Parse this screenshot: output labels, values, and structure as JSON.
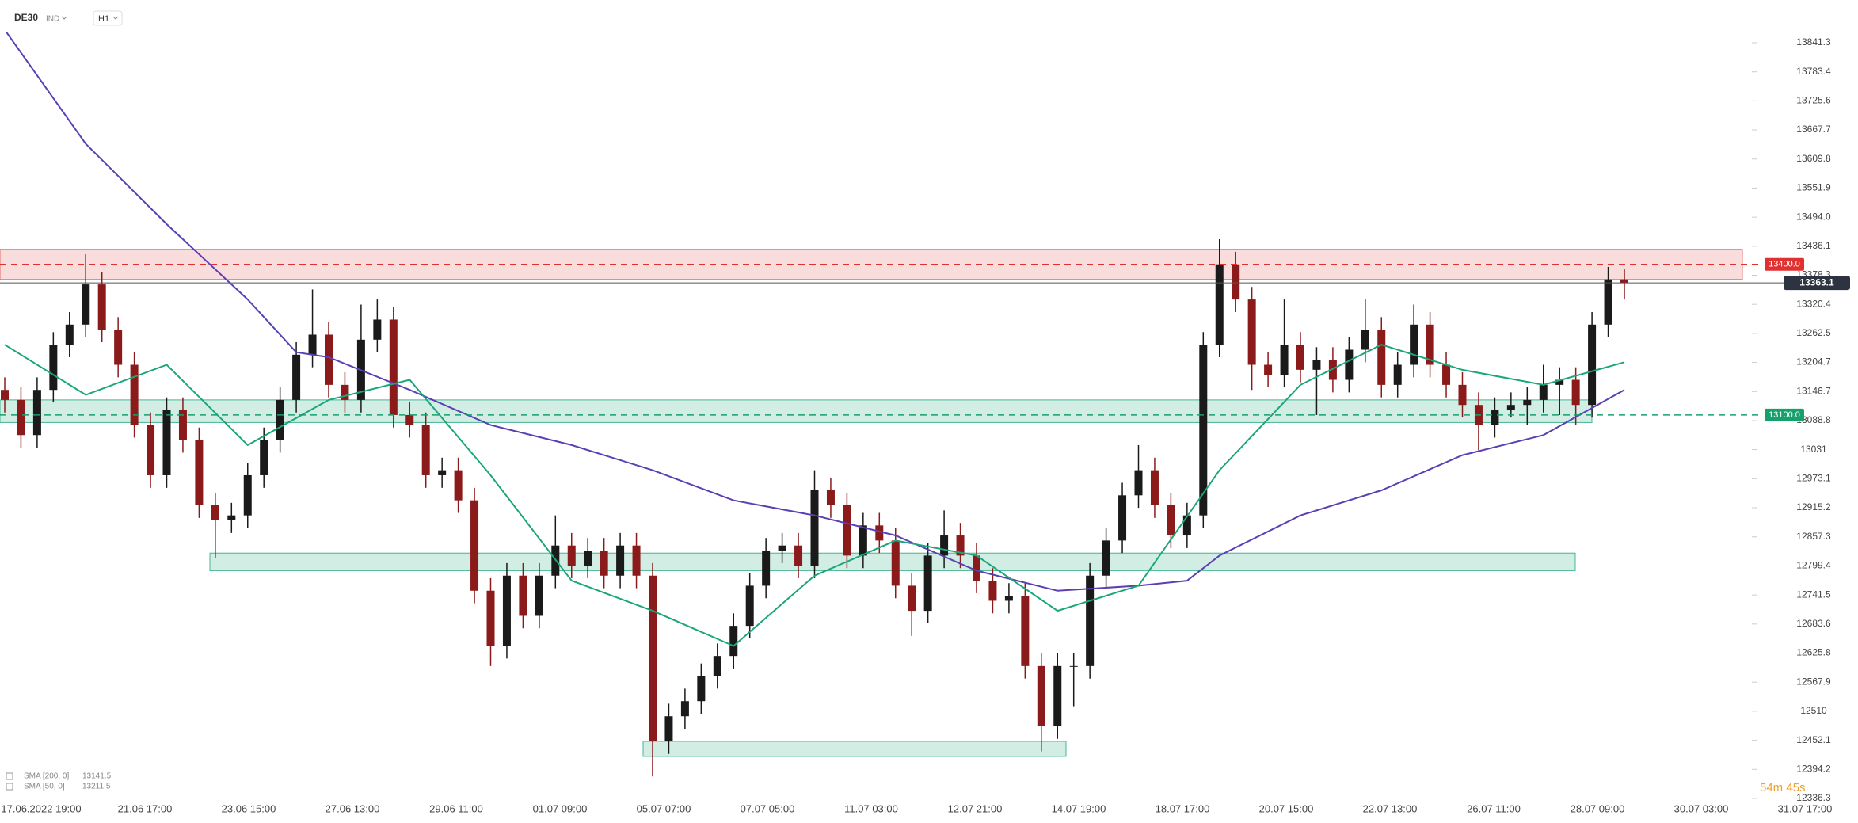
{
  "header": {
    "symbol": "DE30",
    "market": "IND",
    "interval": "H1"
  },
  "countdown": "54m 45s",
  "chart_data": {
    "type": "candlestick",
    "up_color": "#1a1a1a",
    "down_color": "#8b1a1a",
    "ylim": [
      12336.3,
      13841.3
    ],
    "yticks": [
      13841.3,
      13783.4,
      13725.6,
      13667.7,
      13609.8,
      13551.9,
      {
        "value": 13494.0,
        "label": "13494.0"
      },
      13436.1,
      13378.3,
      13320.4,
      13262.5,
      13204.7,
      13146.7,
      13088.8,
      13031.0,
      12973.1,
      12915.2,
      12857.3,
      12799.4,
      12741.5,
      12683.6,
      12625.8,
      12567.9,
      12510.0,
      12452.1,
      12394.2,
      12336.3
    ],
    "x_labels": [
      "17.06.2022 19:00",
      "21.06 17:00",
      "23.06 15:00",
      "27.06 13:00",
      "29.06 11:00",
      "01.07 09:00",
      "05.07 07:00",
      "07.07 05:00",
      "11.07 03:00",
      "12.07 21:00",
      "14.07 19:00",
      "18.07 17:00",
      "20.07 15:00",
      "22.07 13:00",
      "26.07 11:00",
      "28.07 09:00",
      "30.07 03:00",
      "31.07 17:00"
    ],
    "ohlc": [
      [
        13150,
        13175,
        13105,
        13130
      ],
      [
        13130,
        13155,
        13035,
        13060
      ],
      [
        13060,
        13175,
        13035,
        13150
      ],
      [
        13150,
        13265,
        13125,
        13240
      ],
      [
        13240,
        13305,
        13215,
        13280
      ],
      [
        13280,
        13420,
        13255,
        13360
      ],
      [
        13360,
        13385,
        13245,
        13270
      ],
      [
        13270,
        13295,
        13175,
        13200
      ],
      [
        13200,
        13225,
        13055,
        13080
      ],
      [
        13080,
        13105,
        12955,
        12980
      ],
      [
        12980,
        13135,
        12955,
        13110
      ],
      [
        13110,
        13135,
        13025,
        13050
      ],
      [
        13050,
        13075,
        12895,
        12920
      ],
      [
        12920,
        12945,
        12815,
        12890
      ],
      [
        12890,
        12925,
        12865,
        12900
      ],
      [
        12900,
        13005,
        12875,
        12980
      ],
      [
        12980,
        13075,
        12955,
        13050
      ],
      [
        13050,
        13155,
        13025,
        13130
      ],
      [
        13130,
        13245,
        13105,
        13220
      ],
      [
        13220,
        13350,
        13195,
        13260
      ],
      [
        13260,
        13285,
        13135,
        13160
      ],
      [
        13160,
        13185,
        13105,
        13130
      ],
      [
        13130,
        13320,
        13105,
        13250
      ],
      [
        13250,
        13330,
        13225,
        13290
      ],
      [
        13290,
        13315,
        13075,
        13100
      ],
      [
        13100,
        13125,
        13055,
        13080
      ],
      [
        13080,
        13105,
        12955,
        12980
      ],
      [
        12980,
        13015,
        12955,
        12990
      ],
      [
        12990,
        13015,
        12905,
        12930
      ],
      [
        12930,
        12955,
        12725,
        12750
      ],
      [
        12750,
        12775,
        12600,
        12640
      ],
      [
        12640,
        12805,
        12615,
        12780
      ],
      [
        12780,
        12805,
        12675,
        12700
      ],
      [
        12700,
        12805,
        12675,
        12780
      ],
      [
        12780,
        12900,
        12755,
        12840
      ],
      [
        12840,
        12865,
        12775,
        12800
      ],
      [
        12800,
        12855,
        12775,
        12830
      ],
      [
        12830,
        12855,
        12755,
        12780
      ],
      [
        12780,
        12865,
        12755,
        12840
      ],
      [
        12840,
        12865,
        12755,
        12780
      ],
      [
        12780,
        12805,
        12380,
        12450
      ],
      [
        12450,
        12525,
        12425,
        12500
      ],
      [
        12500,
        12555,
        12475,
        12530
      ],
      [
        12530,
        12605,
        12505,
        12580
      ],
      [
        12580,
        12645,
        12555,
        12620
      ],
      [
        12620,
        12705,
        12595,
        12680
      ],
      [
        12680,
        12785,
        12655,
        12760
      ],
      [
        12760,
        12855,
        12735,
        12830
      ],
      [
        12830,
        12865,
        12805,
        12840
      ],
      [
        12840,
        12865,
        12775,
        12800
      ],
      [
        12800,
        12990,
        12775,
        12950
      ],
      [
        12950,
        12975,
        12895,
        12920
      ],
      [
        12920,
        12945,
        12795,
        12820
      ],
      [
        12820,
        12905,
        12795,
        12880
      ],
      [
        12880,
        12905,
        12825,
        12850
      ],
      [
        12850,
        12875,
        12735,
        12760
      ],
      [
        12760,
        12785,
        12660,
        12710
      ],
      [
        12710,
        12845,
        12685,
        12820
      ],
      [
        12820,
        12910,
        12795,
        12860
      ],
      [
        12860,
        12885,
        12795,
        12820
      ],
      [
        12820,
        12845,
        12745,
        12770
      ],
      [
        12770,
        12795,
        12705,
        12730
      ],
      [
        12730,
        12765,
        12705,
        12740
      ],
      [
        12740,
        12765,
        12575,
        12600
      ],
      [
        12600,
        12625,
        12430,
        12480
      ],
      [
        12480,
        12625,
        12455,
        12600
      ],
      [
        12600,
        12625,
        12520,
        12600
      ],
      [
        12600,
        12805,
        12575,
        12780
      ],
      [
        12780,
        12875,
        12755,
        12850
      ],
      [
        12850,
        12965,
        12825,
        12940
      ],
      [
        12940,
        13040,
        12915,
        12990
      ],
      [
        12990,
        13015,
        12895,
        12920
      ],
      [
        12920,
        12945,
        12835,
        12860
      ],
      [
        12860,
        12925,
        12835,
        12900
      ],
      [
        12900,
        13265,
        12875,
        13240
      ],
      [
        13240,
        13450,
        13215,
        13400
      ],
      [
        13400,
        13425,
        13305,
        13330
      ],
      [
        13330,
        13355,
        13150,
        13200
      ],
      [
        13200,
        13225,
        13155,
        13180
      ],
      [
        13180,
        13330,
        13155,
        13240
      ],
      [
        13240,
        13265,
        13165,
        13190
      ],
      [
        13190,
        13235,
        13100,
        13210
      ],
      [
        13210,
        13235,
        13145,
        13170
      ],
      [
        13170,
        13255,
        13145,
        13230
      ],
      [
        13230,
        13330,
        13205,
        13270
      ],
      [
        13270,
        13295,
        13135,
        13160
      ],
      [
        13160,
        13225,
        13135,
        13200
      ],
      [
        13200,
        13320,
        13175,
        13280
      ],
      [
        13280,
        13305,
        13175,
        13200
      ],
      [
        13200,
        13225,
        13135,
        13160
      ],
      [
        13160,
        13185,
        13095,
        13120
      ],
      [
        13120,
        13145,
        13030,
        13080
      ],
      [
        13080,
        13135,
        13055,
        13110
      ],
      [
        13110,
        13145,
        13095,
        13120
      ],
      [
        13120,
        13155,
        13080,
        13130
      ],
      [
        13130,
        13200,
        13105,
        13160
      ],
      [
        13160,
        13195,
        13100,
        13170
      ],
      [
        13170,
        13195,
        13080,
        13120
      ],
      [
        13120,
        13305,
        13095,
        13280
      ],
      [
        13280,
        13395,
        13255,
        13370
      ],
      [
        13370,
        13390,
        13330,
        13363.1
      ]
    ],
    "series": [
      {
        "name": "SMA [200, 0]",
        "last": 13141.5,
        "color": "#5b3fb5",
        "x": [
          0,
          5,
          10,
          15,
          18,
          20,
          25,
          30,
          35,
          40,
          45,
          50,
          55,
          60,
          65,
          70,
          73,
          75,
          80,
          85,
          90,
          95,
          100
        ],
        "values": [
          13867,
          13640,
          13480,
          13330,
          13225,
          13215,
          13150,
          13080,
          13040,
          12990,
          12930,
          12900,
          12860,
          12790,
          12750,
          12760,
          12770,
          12820,
          12900,
          12950,
          13020,
          13060,
          13150
        ]
      },
      {
        "name": "SMA [50, 0]",
        "last": 13211.5,
        "color": "#1aa67a",
        "x": [
          0,
          5,
          10,
          15,
          20,
          25,
          30,
          35,
          40,
          45,
          50,
          55,
          60,
          65,
          70,
          75,
          80,
          85,
          90,
          95,
          100
        ],
        "values": [
          13240,
          13140,
          13200,
          13040,
          13130,
          13170,
          12980,
          12770,
          12710,
          12640,
          12780,
          12850,
          12820,
          12710,
          12760,
          12990,
          13160,
          13240,
          13190,
          13160,
          13205
        ]
      }
    ],
    "zones": [
      {
        "low": 13370,
        "high": 13430,
        "color": "#e05050"
      },
      {
        "low": 13085,
        "high": 13130,
        "color": "#1aa67a"
      },
      {
        "low": 12790,
        "high": 12825,
        "color": "#1aa67a"
      },
      {
        "low": 12420,
        "high": 12450,
        "color": "#1aa67a"
      }
    ],
    "levels": [
      {
        "value": 13400,
        "label": "13400.0",
        "color": "#e03030"
      },
      {
        "value": 13100,
        "label": "13100.0",
        "color": "#15a06e"
      }
    ],
    "last_price": 13363.1
  }
}
